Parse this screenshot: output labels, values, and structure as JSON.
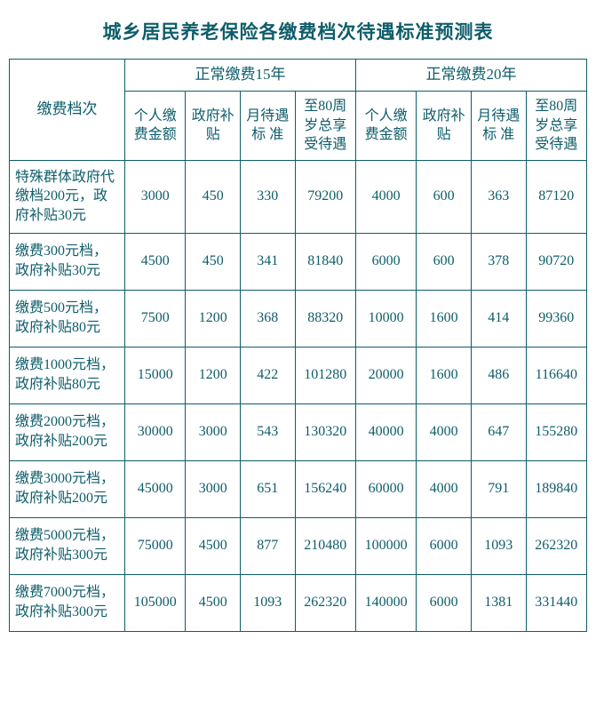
{
  "title": "城乡居民养老保险各缴费档次待遇标准预测表",
  "headers": {
    "tier": "缴费档次",
    "group15": "正常缴费15年",
    "group20": "正常缴费20年",
    "sub": {
      "personal": "个人缴费金额",
      "gov": "政府补贴",
      "monthly": "月待遇标 准",
      "to80": "至80周岁总享受待遇"
    }
  },
  "rows": [
    {
      "tier": "特殊群体政府代缴档200元，政府补贴30元",
      "y15": {
        "personal": "3000",
        "gov": "450",
        "monthly": "330",
        "to80": "79200"
      },
      "y20": {
        "personal": "4000",
        "gov": "600",
        "monthly": "363",
        "to80": "87120"
      }
    },
    {
      "tier": "缴费300元档，政府补贴30元",
      "y15": {
        "personal": "4500",
        "gov": "450",
        "monthly": "341",
        "to80": "81840"
      },
      "y20": {
        "personal": "6000",
        "gov": "600",
        "monthly": "378",
        "to80": "90720"
      }
    },
    {
      "tier": "缴费500元档，政府补贴80元",
      "y15": {
        "personal": "7500",
        "gov": "1200",
        "monthly": "368",
        "to80": "88320"
      },
      "y20": {
        "personal": "10000",
        "gov": "1600",
        "monthly": "414",
        "to80": "99360"
      }
    },
    {
      "tier": "缴费1000元档，政府补贴80元",
      "y15": {
        "personal": "15000",
        "gov": "1200",
        "monthly": "422",
        "to80": "101280"
      },
      "y20": {
        "personal": "20000",
        "gov": "1600",
        "monthly": "486",
        "to80": "116640"
      }
    },
    {
      "tier": "缴费2000元档，政府补贴200元",
      "y15": {
        "personal": "30000",
        "gov": "3000",
        "monthly": "543",
        "to80": "130320"
      },
      "y20": {
        "personal": "40000",
        "gov": "4000",
        "monthly": "647",
        "to80": "155280"
      }
    },
    {
      "tier": "缴费3000元档，政府补贴200元",
      "y15": {
        "personal": "45000",
        "gov": "3000",
        "monthly": "651",
        "to80": "156240"
      },
      "y20": {
        "personal": "60000",
        "gov": "4000",
        "monthly": "791",
        "to80": "189840"
      }
    },
    {
      "tier": "缴费5000元档，政府补贴300元",
      "y15": {
        "personal": "75000",
        "gov": "4500",
        "monthly": "877",
        "to80": "210480"
      },
      "y20": {
        "personal": "100000",
        "gov": "6000",
        "monthly": "1093",
        "to80": "262320"
      }
    },
    {
      "tier": "缴费7000元档，政府补贴300元",
      "y15": {
        "personal": "105000",
        "gov": "4500",
        "monthly": "1093",
        "to80": "262320"
      },
      "y20": {
        "personal": "140000",
        "gov": "6000",
        "monthly": "1381",
        "to80": "331440"
      }
    }
  ]
}
